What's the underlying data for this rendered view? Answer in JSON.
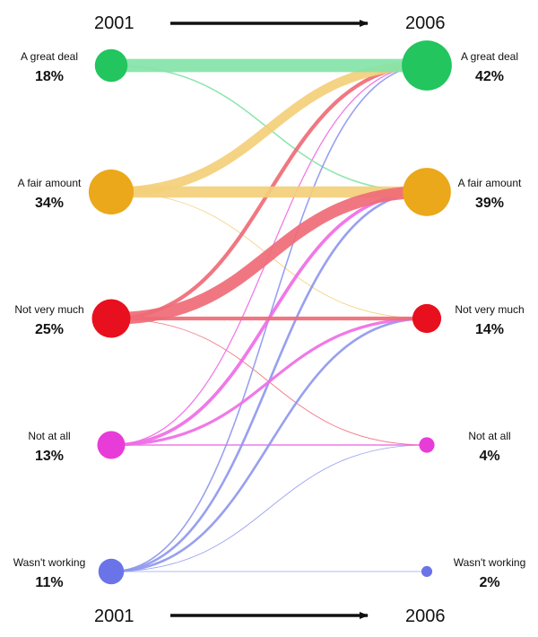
{
  "chart_data": {
    "type": "flow",
    "from_year": "2001",
    "to_year": "2006",
    "categories": [
      {
        "label": "A great deal",
        "pct_2001": 18,
        "pct_2006": 42,
        "pct_2001_label": "18%",
        "pct_2006_label": "42%",
        "color": "#22c55e",
        "flow_color": "#86e3a8"
      },
      {
        "label": "A fair amount",
        "pct_2001": 34,
        "pct_2006": 39,
        "pct_2001_label": "34%",
        "pct_2006_label": "39%",
        "color": "#eaa81a",
        "flow_color": "#f3cf7a"
      },
      {
        "label": "Not very much",
        "pct_2001": 25,
        "pct_2006": 14,
        "pct_2001_label": "25%",
        "pct_2006_label": "14%",
        "color": "#e8101e",
        "flow_color": "#ef6b76"
      },
      {
        "label": "Not at all",
        "pct_2001": 13,
        "pct_2006": 4,
        "pct_2001_label": "13%",
        "pct_2006_label": "4%",
        "color": "#e83cd8",
        "flow_color": "#ef6ce6"
      },
      {
        "label": "Wasn't working",
        "pct_2001": 11,
        "pct_2006": 2,
        "pct_2001_label": "11%",
        "pct_2006_label": "2%",
        "color": "#6a74e8",
        "flow_color": "#8f98ee"
      }
    ],
    "flows": [
      {
        "from": 0,
        "to": 0,
        "value": 14
      },
      {
        "from": 0,
        "to": 1,
        "value": 1.5
      },
      {
        "from": 1,
        "to": 0,
        "value": 10
      },
      {
        "from": 1,
        "to": 1,
        "value": 12
      },
      {
        "from": 1,
        "to": 2,
        "value": 0.8
      },
      {
        "from": 2,
        "to": 0,
        "value": 4
      },
      {
        "from": 2,
        "to": 1,
        "value": 13
      },
      {
        "from": 2,
        "to": 2,
        "value": 4
      },
      {
        "from": 2,
        "to": 3,
        "value": 0.8
      },
      {
        "from": 3,
        "to": 0,
        "value": 1.2
      },
      {
        "from": 3,
        "to": 1,
        "value": 3.5
      },
      {
        "from": 3,
        "to": 2,
        "value": 3
      },
      {
        "from": 3,
        "to": 3,
        "value": 1.5
      },
      {
        "from": 4,
        "to": 0,
        "value": 1.5
      },
      {
        "from": 4,
        "to": 1,
        "value": 2.5
      },
      {
        "from": 4,
        "to": 2,
        "value": 2.5
      },
      {
        "from": 4,
        "to": 3,
        "value": 0.8
      },
      {
        "from": 4,
        "to": 4,
        "value": 0.6
      }
    ]
  }
}
